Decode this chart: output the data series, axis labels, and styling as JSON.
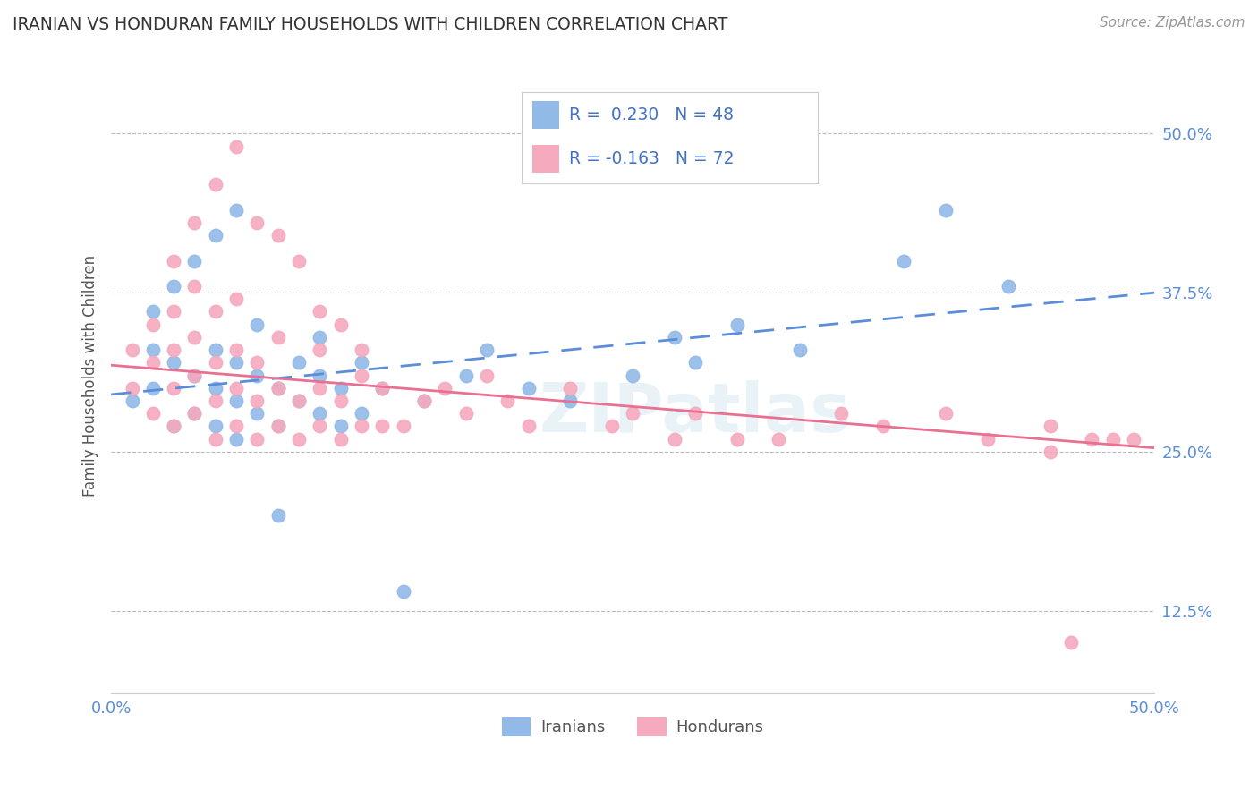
{
  "title": "IRANIAN VS HONDURAN FAMILY HOUSEHOLDS WITH CHILDREN CORRELATION CHART",
  "source": "Source: ZipAtlas.com",
  "ylabel": "Family Households with Children",
  "xlim": [
    0.0,
    0.5
  ],
  "ylim": [
    0.06,
    0.56
  ],
  "xticks": [
    0.0,
    0.1,
    0.2,
    0.3,
    0.4,
    0.5
  ],
  "xticklabels": [
    "0.0%",
    "",
    "",
    "",
    "",
    "50.0%"
  ],
  "yticks": [
    0.125,
    0.25,
    0.375,
    0.5
  ],
  "yticklabels": [
    "12.5%",
    "25.0%",
    "37.5%",
    "50.0%"
  ],
  "iranians_R": 0.23,
  "iranians_N": 48,
  "hondurans_R": -0.163,
  "hondurans_N": 72,
  "iranian_color": "#91BAE8",
  "honduran_color": "#F5AABE",
  "iranian_line_color": "#5B8DD9",
  "honduran_line_color": "#E87090",
  "watermark": "ZIPatlas",
  "background_color": "#ffffff",
  "grid_color": "#bbbbbb",
  "title_color": "#333333",
  "source_color": "#999999",
  "tick_color": "#5B8DD9",
  "ylabel_color": "#555555",
  "legend_text_color": "#4472C4",
  "bottom_legend_text_color": "#555555",
  "iranian_trend_start_y": 0.295,
  "iranian_trend_end_y": 0.375,
  "honduran_trend_start_y": 0.318,
  "honduran_trend_end_y": 0.253,
  "iranian_scatter_x": [
    0.01,
    0.02,
    0.02,
    0.03,
    0.03,
    0.04,
    0.04,
    0.05,
    0.05,
    0.05,
    0.06,
    0.06,
    0.06,
    0.07,
    0.07,
    0.08,
    0.08,
    0.09,
    0.09,
    0.1,
    0.1,
    0.1,
    0.11,
    0.11,
    0.12,
    0.12,
    0.13,
    0.15,
    0.17,
    0.18,
    0.2,
    0.22,
    0.25,
    0.27,
    0.28,
    0.3,
    0.33,
    0.38,
    0.4,
    0.43,
    0.02,
    0.03,
    0.04,
    0.05,
    0.06,
    0.07,
    0.08,
    0.14
  ],
  "iranian_scatter_y": [
    0.29,
    0.33,
    0.3,
    0.27,
    0.32,
    0.28,
    0.31,
    0.3,
    0.27,
    0.33,
    0.26,
    0.29,
    0.32,
    0.28,
    0.31,
    0.27,
    0.3,
    0.29,
    0.32,
    0.28,
    0.31,
    0.34,
    0.27,
    0.3,
    0.28,
    0.32,
    0.3,
    0.29,
    0.31,
    0.33,
    0.3,
    0.29,
    0.31,
    0.34,
    0.32,
    0.35,
    0.33,
    0.4,
    0.44,
    0.38,
    0.36,
    0.38,
    0.4,
    0.42,
    0.44,
    0.35,
    0.2,
    0.14
  ],
  "honduran_scatter_x": [
    0.01,
    0.01,
    0.02,
    0.02,
    0.02,
    0.03,
    0.03,
    0.03,
    0.03,
    0.04,
    0.04,
    0.04,
    0.04,
    0.05,
    0.05,
    0.05,
    0.05,
    0.06,
    0.06,
    0.06,
    0.06,
    0.07,
    0.07,
    0.07,
    0.08,
    0.08,
    0.08,
    0.09,
    0.09,
    0.1,
    0.1,
    0.1,
    0.11,
    0.11,
    0.12,
    0.12,
    0.13,
    0.13,
    0.14,
    0.15,
    0.16,
    0.17,
    0.18,
    0.19,
    0.2,
    0.22,
    0.24,
    0.25,
    0.27,
    0.28,
    0.3,
    0.32,
    0.35,
    0.37,
    0.4,
    0.42,
    0.45,
    0.47,
    0.48,
    0.49,
    0.03,
    0.04,
    0.05,
    0.06,
    0.07,
    0.08,
    0.09,
    0.1,
    0.11,
    0.12,
    0.45,
    0.46
  ],
  "honduran_scatter_y": [
    0.3,
    0.33,
    0.28,
    0.32,
    0.35,
    0.27,
    0.3,
    0.33,
    0.36,
    0.28,
    0.31,
    0.34,
    0.38,
    0.26,
    0.29,
    0.32,
    0.36,
    0.27,
    0.3,
    0.33,
    0.37,
    0.26,
    0.29,
    0.32,
    0.27,
    0.3,
    0.34,
    0.26,
    0.29,
    0.27,
    0.3,
    0.33,
    0.26,
    0.29,
    0.27,
    0.31,
    0.27,
    0.3,
    0.27,
    0.29,
    0.3,
    0.28,
    0.31,
    0.29,
    0.27,
    0.3,
    0.27,
    0.28,
    0.26,
    0.28,
    0.26,
    0.26,
    0.28,
    0.27,
    0.28,
    0.26,
    0.27,
    0.26,
    0.26,
    0.26,
    0.4,
    0.43,
    0.46,
    0.49,
    0.43,
    0.42,
    0.4,
    0.36,
    0.35,
    0.33,
    0.25,
    0.1
  ]
}
